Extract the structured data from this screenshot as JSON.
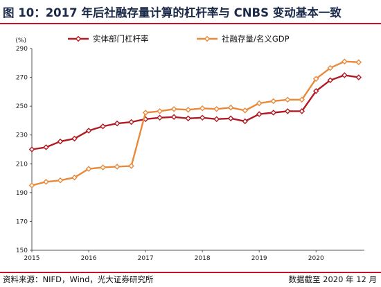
{
  "title": "图 10：2017 年后社融存量计算的杠杆率与 CNBS 变动基本一致",
  "footer": {
    "source": "资料来源：NIFD，Wind，光大证券研究所",
    "date": "数据截至 2020 年 12 月"
  },
  "colors": {
    "accent_rule": "#c5122a",
    "series1": "#b01a22",
    "series2": "#e8893b"
  },
  "chart_data": {
    "type": "line",
    "title": "",
    "xlabel": "",
    "ylabel": "(%)",
    "ylim": [
      150,
      290
    ],
    "yticks": [
      150,
      170,
      190,
      210,
      230,
      250,
      270,
      290
    ],
    "xlim": [
      2015,
      2020.85
    ],
    "xticks": [
      "2015",
      "2016",
      "2017",
      "2018",
      "2019",
      "2020"
    ],
    "grid": false,
    "legend": "top",
    "x": [
      2015.0,
      2015.25,
      2015.5,
      2015.75,
      2016.0,
      2016.25,
      2016.5,
      2016.75,
      2017.0,
      2017.25,
      2017.5,
      2017.75,
      2018.0,
      2018.25,
      2018.5,
      2018.75,
      2019.0,
      2019.25,
      2019.5,
      2019.75,
      2020.0,
      2020.25,
      2020.5,
      2020.75
    ],
    "series": [
      {
        "name": "实体部门杠杆率",
        "color": "#b01a22",
        "values": [
          220.0,
          221.5,
          225.5,
          227.5,
          233.0,
          236.0,
          238.0,
          239.0,
          241.0,
          242.0,
          242.5,
          241.5,
          242.0,
          241.0,
          241.5,
          239.5,
          244.5,
          245.5,
          246.5,
          246.5,
          260.5,
          268.0,
          271.5,
          270.0
        ]
      },
      {
        "name": "社融存量/名义GDP",
        "color": "#e8893b",
        "values": [
          195.0,
          197.5,
          198.5,
          200.5,
          206.5,
          207.5,
          208.0,
          208.5,
          245.5,
          246.5,
          248.0,
          247.5,
          248.5,
          248.0,
          249.0,
          247.0,
          252.0,
          253.5,
          254.5,
          254.5,
          269.0,
          276.5,
          281.0,
          280.5
        ]
      }
    ]
  }
}
